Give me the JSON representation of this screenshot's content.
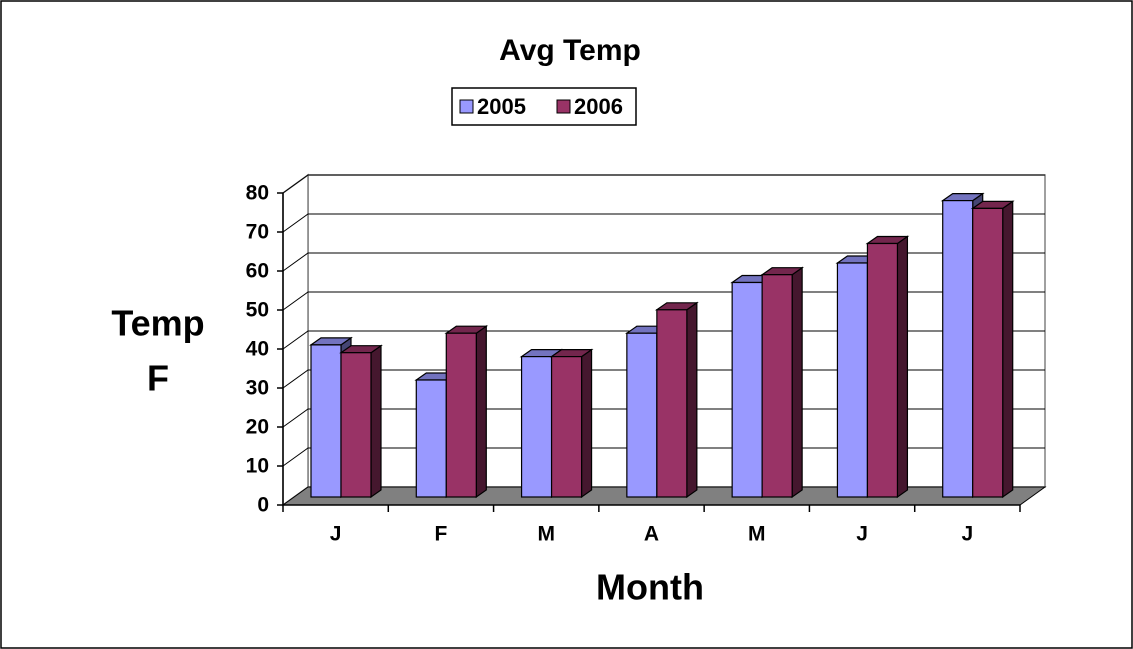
{
  "chart_data": {
    "type": "bar3d",
    "title": "Avg Temp",
    "x_label": "Month",
    "y_label": [
      "Temp",
      "F"
    ],
    "categories": [
      "J",
      "F",
      "M",
      "A",
      "M",
      "J",
      "J"
    ],
    "series": [
      {
        "name": "2005",
        "color": "#9999ff",
        "values": [
          39,
          30,
          36,
          42,
          55,
          60,
          76
        ]
      },
      {
        "name": "2006",
        "color": "#993366",
        "values": [
          37,
          42,
          36,
          48,
          57,
          65,
          74
        ]
      }
    ],
    "ylim": [
      0,
      80
    ],
    "yticks": [
      0,
      10,
      20,
      30,
      40,
      50,
      60,
      70,
      80
    ],
    "grid": true,
    "legend": "top"
  }
}
